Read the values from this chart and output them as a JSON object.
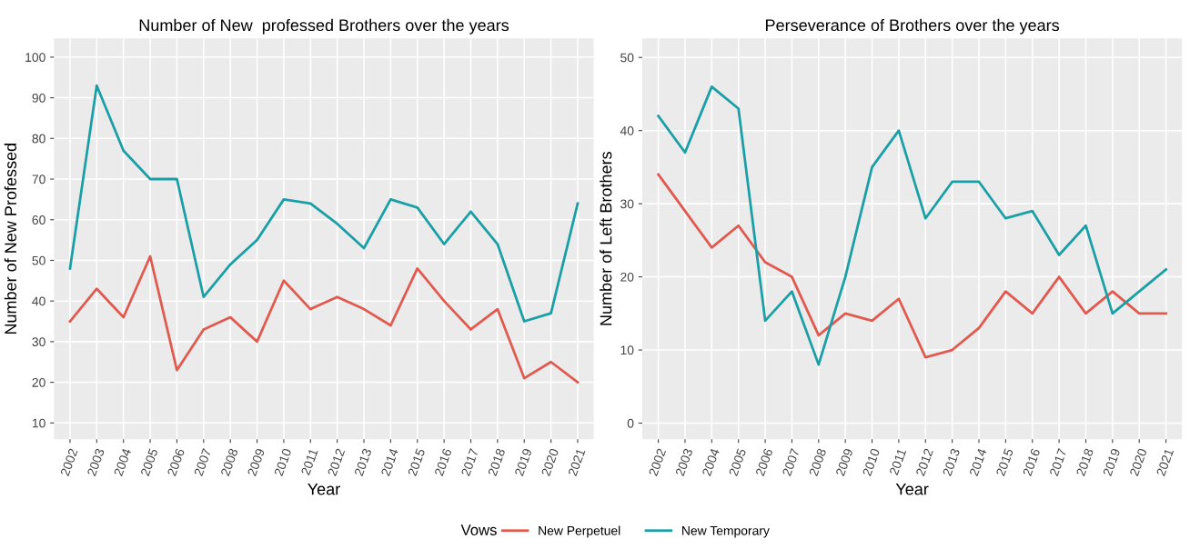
{
  "chart_data": [
    {
      "type": "line",
      "title": "Number of New  professed Brothers over the years",
      "xlabel": "Year",
      "ylabel": "Number of New Professed",
      "legend_title": "Vows",
      "legend": "bottom",
      "grid": true,
      "categories": [
        "2002",
        "2003",
        "2004",
        "2005",
        "2006",
        "2007",
        "2008",
        "2009",
        "2010",
        "2011",
        "2012",
        "2013",
        "2014",
        "2015",
        "2016",
        "2017",
        "2018",
        "2019",
        "2020",
        "2021"
      ],
      "ylim": [
        6,
        104.6
      ],
      "yticks": [
        10,
        20,
        30,
        40,
        50,
        60,
        70,
        80,
        90,
        100
      ],
      "series": [
        {
          "name": "New Perpetuel",
          "color": "#e05a4f",
          "values": [
            35,
            43,
            36,
            51,
            23,
            33,
            36,
            30,
            45,
            38,
            41,
            38,
            34,
            48,
            40,
            33,
            38,
            21,
            25,
            20
          ]
        },
        {
          "name": "New Temporary",
          "color": "#1a9fa6",
          "values": [
            48,
            93,
            77,
            70,
            70,
            41,
            49,
            55,
            65,
            64,
            59,
            53,
            65,
            63,
            54,
            62,
            54,
            35,
            37,
            64
          ]
        }
      ]
    },
    {
      "type": "line",
      "title": "Perseverance of Brothers over the years",
      "xlabel": "Year",
      "ylabel": "Number of Left Brothers",
      "grid": true,
      "categories": [
        "2002",
        "2003",
        "2004",
        "2005",
        "2006",
        "2007",
        "2008",
        "2009",
        "2010",
        "2011",
        "2012",
        "2013",
        "2014",
        "2015",
        "2016",
        "2017",
        "2018",
        "2019",
        "2020",
        "2021"
      ],
      "ylim": [
        -2.2,
        52.6
      ],
      "yticks": [
        0,
        10,
        20,
        30,
        40,
        50
      ],
      "series": [
        {
          "color": "#e05a4f",
          "values": [
            34,
            29,
            24,
            27,
            22,
            20,
            12,
            15,
            14,
            17,
            9,
            10,
            13,
            18,
            15,
            20,
            15,
            18,
            15,
            15
          ]
        },
        {
          "color": "#1a9fa6",
          "values": [
            42,
            37,
            46,
            43,
            14,
            18,
            8,
            20,
            35,
            40,
            28,
            33,
            33,
            28,
            29,
            23,
            27,
            15,
            18,
            21
          ]
        }
      ]
    }
  ]
}
